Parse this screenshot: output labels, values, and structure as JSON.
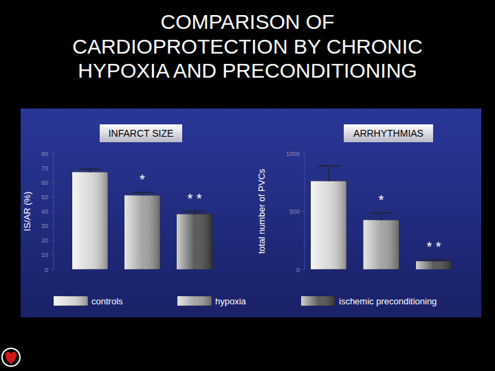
{
  "title": "COMPARISON OF\nCARDIOPROTECTION BY CHRONIC\nHYPOXIA AND PRECONDITIONING",
  "chart_data": [
    {
      "type": "bar",
      "title": "INFARCT SIZE",
      "y_label": "IS/AR (%)",
      "categories": [
        "controls",
        "hypoxia",
        "ischemic preconditioning"
      ],
      "values": [
        67,
        51,
        38
      ],
      "errors": [
        2,
        2,
        2
      ],
      "colors": [
        "#d4d4d4",
        "#9c9c9c",
        "#4a4a4a"
      ],
      "ylim": [
        0,
        80
      ],
      "yticks": [
        0,
        10,
        20,
        30,
        40,
        50,
        60,
        70,
        80
      ],
      "legend": "bottom",
      "annotations": [
        {
          "text": "*",
          "index": 1
        },
        {
          "text": "* *",
          "index": 2
        }
      ]
    },
    {
      "type": "bar",
      "title": "ARRHYTHMIAS",
      "y_label": "total number of PVCs",
      "values": [
        760,
        425,
        70
      ],
      "errors": [
        130,
        60,
        10
      ],
      "colors": [
        "#d4d4d4",
        "#9c9c9c",
        "#4a4a4a"
      ],
      "ylim": [
        0,
        1000
      ],
      "yticks": [
        0,
        500,
        1000
      ],
      "annotations": [
        {
          "text": "*",
          "index": 1
        },
        {
          "text": "* *",
          "index": 2
        }
      ]
    }
  ]
}
